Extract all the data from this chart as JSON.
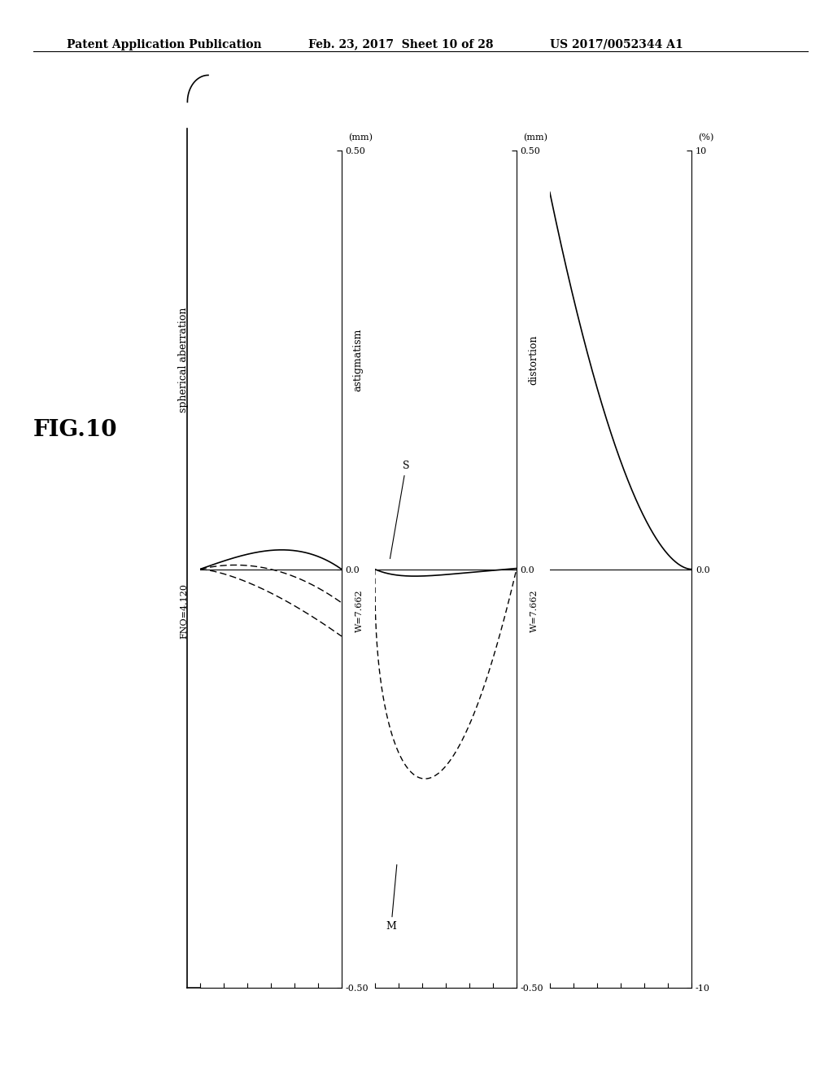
{
  "fig_label": "FIG.10",
  "header_left": "Patent Application Publication",
  "header_mid": "Feb. 23, 2017  Sheet 10 of 28",
  "header_right": "US 2017/0052344 A1",
  "background_color": "#ffffff",
  "plots": [
    {
      "title": "spherical aberration",
      "subtitle": "FNO=4.120",
      "unit": "(mm)",
      "ylim": [
        -0.5,
        0.5
      ],
      "yticks": [
        -0.5,
        0.0,
        0.5
      ],
      "ytick_labels": [
        "-0.50",
        "0.0",
        "0.50"
      ],
      "type": "spherical"
    },
    {
      "title": "astigmatism",
      "subtitle": "W=7.662",
      "unit": "(mm)",
      "ylim": [
        -0.5,
        0.5
      ],
      "yticks": [
        -0.5,
        0.0,
        0.5
      ],
      "ytick_labels": [
        "-0.50",
        "0.0",
        "0.50"
      ],
      "type": "astigmatism"
    },
    {
      "title": "distortion",
      "subtitle": "W=7.662",
      "unit": "(%)",
      "ylim": [
        -10,
        10
      ],
      "yticks": [
        -10,
        0.0,
        10
      ],
      "ytick_labels": [
        "-10",
        "0.0",
        "10"
      ],
      "type": "distortion"
    }
  ]
}
